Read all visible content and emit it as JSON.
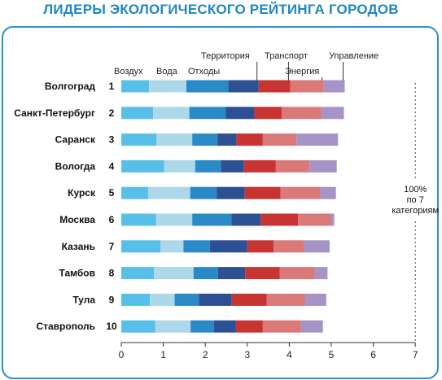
{
  "title": "ЛИДЕРЫ ЭКОЛОГИЧЕСКОГО РЕЙТИНГА ГОРОДОВ",
  "chart_data": {
    "type": "bar",
    "orientation": "horizontal",
    "stacked": true,
    "title": "ЛИДЕРЫ ЭКОЛОГИЧЕСКОГО РЕЙТИНГА ГОРОДОВ",
    "xlim": [
      0,
      7
    ],
    "x_ticks": [
      "0",
      "1",
      "2",
      "3",
      "4",
      "5",
      "6",
      "7"
    ],
    "reference_line": {
      "x": 7,
      "label": "100%\nпо 7\nкатегориям"
    },
    "categories": [
      {
        "name": "Воздух",
        "color": "#58bfe8"
      },
      {
        "name": "Вода",
        "color": "#acd8ea"
      },
      {
        "name": "Отходы",
        "color": "#2a8ac8"
      },
      {
        "name": "Территория",
        "color": "#2d4f94"
      },
      {
        "name": "Транспорт",
        "color": "#c83432"
      },
      {
        "name": "Энергия",
        "color": "#db7979"
      },
      {
        "name": "Управление",
        "color": "#a794c6"
      }
    ],
    "rows": [
      {
        "city": "Волгоград",
        "rank": "1",
        "values": [
          0.66,
          0.89,
          1.0,
          0.72,
          0.75,
          0.8,
          0.5
        ]
      },
      {
        "city": "Санкт-Петербург",
        "rank": "2",
        "values": [
          0.76,
          0.86,
          0.87,
          0.68,
          0.65,
          0.94,
          0.54
        ]
      },
      {
        "city": "Саранск",
        "rank": "3",
        "values": [
          0.84,
          0.85,
          0.6,
          0.45,
          0.63,
          0.8,
          0.99
        ]
      },
      {
        "city": "Вологда",
        "rank": "4",
        "values": [
          1.02,
          0.74,
          0.61,
          0.55,
          0.76,
          0.8,
          0.65
        ]
      },
      {
        "city": "Курск",
        "rank": "5",
        "values": [
          0.64,
          1.0,
          0.63,
          0.67,
          0.85,
          0.95,
          0.37
        ]
      },
      {
        "city": "Москва",
        "rank": "6",
        "values": [
          0.83,
          0.86,
          0.93,
          0.7,
          0.89,
          0.78,
          0.08
        ]
      },
      {
        "city": "Казань",
        "rank": "7",
        "values": [
          0.93,
          0.55,
          0.63,
          0.89,
          0.63,
          0.72,
          0.61
        ]
      },
      {
        "city": "Тамбов",
        "rank": "8",
        "values": [
          0.78,
          0.94,
          0.58,
          0.65,
          0.82,
          0.84,
          0.3
        ]
      },
      {
        "city": "Тула",
        "rank": "9",
        "values": [
          0.68,
          0.59,
          0.58,
          0.78,
          0.83,
          0.91,
          0.51
        ]
      },
      {
        "city": "Ставрополь",
        "rank": "10",
        "values": [
          0.81,
          0.84,
          0.56,
          0.52,
          0.64,
          0.91,
          0.52
        ]
      }
    ]
  }
}
